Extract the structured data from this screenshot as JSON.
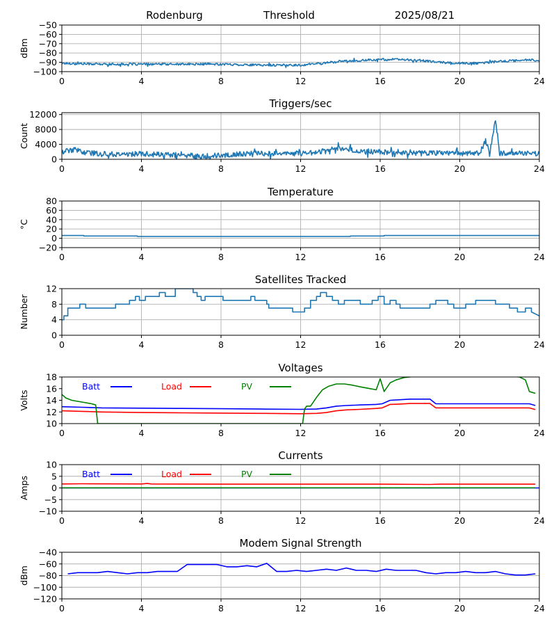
{
  "header": {
    "site": "Rodenburg",
    "metric": "Threshold",
    "date": "2025/08/21"
  },
  "colors": {
    "default_line": "#1f77b4",
    "grid": "#b0b0b0",
    "batt": "#0000ff",
    "load": "#ff0000",
    "pv": "#008000"
  },
  "chart_data": [
    {
      "type": "line",
      "id": "threshold",
      "title": "",
      "ylabel": "dBm",
      "xlim": [
        0,
        24
      ],
      "ylim": [
        -100,
        -50
      ],
      "xticks": [
        0,
        4,
        8,
        12,
        16,
        20,
        24
      ],
      "yticks": [
        -100,
        -90,
        -80,
        -70,
        -60,
        -50
      ],
      "grid": true,
      "noise": 1.2,
      "series": [
        {
          "color": "#1f77b4",
          "x": [
            0,
            2,
            4,
            6,
            8,
            10,
            12,
            13,
            14,
            15,
            16,
            17,
            18,
            19,
            20,
            21,
            22,
            23,
            23.5,
            24
          ],
          "y": [
            -91,
            -92,
            -92,
            -92,
            -92,
            -93,
            -93,
            -91,
            -89,
            -88,
            -87,
            -87,
            -88,
            -90,
            -91,
            -91,
            -89,
            -88,
            -87,
            -89
          ]
        }
      ]
    },
    {
      "type": "line",
      "id": "triggers",
      "title": "Triggers/sec",
      "ylabel": "Count",
      "xlim": [
        0,
        24
      ],
      "ylim": [
        0,
        12500
      ],
      "xticks": [
        0,
        4,
        8,
        12,
        16,
        20,
        24
      ],
      "yticks": [
        0,
        4000,
        8000,
        12000
      ],
      "grid": true,
      "noise": 700,
      "series": [
        {
          "color": "#1f77b4",
          "x": [
            0,
            0.6,
            1.2,
            2,
            3,
            4,
            5,
            6,
            7,
            8,
            9,
            10,
            11,
            12,
            13,
            13.5,
            14,
            14.5,
            15,
            16,
            17,
            18,
            19,
            20,
            21,
            21.3,
            21.5,
            21.8,
            22,
            23,
            24
          ],
          "y": [
            2000,
            2600,
            1800,
            1500,
            1300,
            1500,
            1200,
            1100,
            1000,
            1000,
            1400,
            1600,
            1500,
            1600,
            2000,
            2800,
            3000,
            2500,
            2000,
            2000,
            1800,
            1800,
            1700,
            1600,
            1600,
            5000,
            1500,
            11000,
            1600,
            1600,
            1500
          ]
        }
      ]
    },
    {
      "type": "line",
      "id": "temperature",
      "title": "Temperature",
      "ylabel": "°C",
      "xlim": [
        0,
        24
      ],
      "ylim": [
        -20,
        80
      ],
      "xticks": [
        0,
        4,
        8,
        12,
        16,
        20,
        24
      ],
      "yticks": [
        -20,
        0,
        20,
        40,
        60,
        80
      ],
      "grid": true,
      "noise": 0,
      "series": [
        {
          "color": "#1f77b4",
          "x": [
            0,
            1.1,
            1.1,
            3.8,
            3.8,
            14.5,
            14.5,
            16.2,
            16.2,
            24
          ],
          "y": [
            6,
            6,
            5,
            5,
            4,
            4,
            5,
            5,
            6,
            6
          ]
        }
      ]
    },
    {
      "type": "line",
      "id": "satellites",
      "title": "Satellites Tracked",
      "ylabel": "Number",
      "xlim": [
        0,
        24
      ],
      "ylim": [
        0,
        12
      ],
      "xticks": [
        0,
        4,
        8,
        12,
        16,
        20,
        24
      ],
      "yticks": [
        0,
        4,
        8,
        12
      ],
      "grid": true,
      "noise": 0,
      "series": [
        {
          "color": "#1f77b4",
          "x": [
            0,
            0.1,
            0.1,
            0.3,
            0.3,
            0.9,
            0.9,
            1.2,
            1.2,
            2.7,
            2.7,
            3.4,
            3.4,
            3.7,
            3.7,
            3.9,
            3.9,
            4.2,
            4.2,
            4.9,
            4.9,
            5.2,
            5.2,
            5.7,
            5.7,
            6.6,
            6.6,
            6.8,
            6.8,
            7.0,
            7.0,
            7.2,
            7.2,
            8.1,
            8.1,
            9.5,
            9.5,
            9.7,
            9.7,
            10.3,
            10.3,
            10.4,
            10.4,
            11.6,
            11.6,
            12.2,
            12.2,
            12.5,
            12.5,
            12.8,
            12.8,
            13.0,
            13.0,
            13.3,
            13.3,
            13.6,
            13.6,
            13.9,
            13.9,
            14.2,
            14.2,
            15.0,
            15.0,
            15.6,
            15.6,
            15.9,
            15.9,
            16.2,
            16.2,
            16.5,
            16.5,
            16.8,
            16.8,
            17.0,
            17.0,
            18.5,
            18.5,
            18.8,
            18.8,
            19.4,
            19.4,
            19.7,
            19.7,
            20.3,
            20.3,
            20.8,
            20.8,
            21.8,
            21.8,
            22.5,
            22.5,
            22.9,
            22.9,
            23.3,
            23.3,
            23.6,
            23.6,
            24
          ],
          "y": [
            4,
            4,
            5,
            5,
            7,
            7,
            8,
            8,
            7,
            7,
            8,
            8,
            9,
            9,
            10,
            10,
            9,
            9,
            10,
            10,
            11,
            11,
            10,
            10,
            12,
            12,
            11,
            11,
            10,
            10,
            9,
            9,
            10,
            10,
            9,
            9,
            10,
            10,
            9,
            9,
            8,
            8,
            7,
            7,
            6,
            6,
            7,
            7,
            9,
            9,
            10,
            10,
            11,
            11,
            10,
            10,
            9,
            9,
            8,
            8,
            9,
            9,
            8,
            8,
            9,
            9,
            10,
            10,
            8,
            8,
            9,
            9,
            8,
            8,
            7,
            7,
            8,
            8,
            9,
            9,
            8,
            8,
            7,
            7,
            8,
            8,
            9,
            9,
            8,
            8,
            7,
            7,
            6,
            6,
            7,
            7,
            6,
            5
          ]
        }
      ]
    },
    {
      "type": "line",
      "id": "voltages",
      "title": "Voltages",
      "ylabel": "Volts",
      "xlim": [
        0,
        24
      ],
      "ylim": [
        10,
        18
      ],
      "xticks": [
        0,
        4,
        8,
        12,
        16,
        20,
        24
      ],
      "yticks": [
        10,
        12,
        14,
        16,
        18
      ],
      "grid": false,
      "noise": 0,
      "legend": [
        {
          "label": "Batt",
          "color": "#0000ff"
        },
        {
          "label": "Load",
          "color": "#ff0000"
        },
        {
          "label": "PV",
          "color": "#008000"
        }
      ],
      "series": [
        {
          "label": "Batt",
          "color": "#0000ff",
          "x": [
            0,
            1,
            2,
            4,
            6,
            8,
            10,
            12,
            12.8,
            13.3,
            13.8,
            14.3,
            15,
            15.8,
            16.1,
            16.5,
            17,
            17.5,
            18.5,
            18.8,
            20,
            22,
            23.5,
            23.8
          ],
          "y": [
            12.9,
            12.8,
            12.7,
            12.65,
            12.6,
            12.55,
            12.5,
            12.45,
            12.5,
            12.7,
            13.0,
            13.1,
            13.2,
            13.3,
            13.4,
            14.0,
            14.1,
            14.2,
            14.2,
            13.4,
            13.4,
            13.4,
            13.4,
            13.1
          ]
        },
        {
          "label": "Load",
          "color": "#ff0000",
          "x": [
            0,
            1,
            2,
            4,
            6,
            8,
            10,
            12,
            12.8,
            13.3,
            13.8,
            14.3,
            15,
            15.8,
            16.1,
            16.5,
            17,
            17.5,
            18.5,
            18.8,
            20,
            22,
            23.5,
            23.8
          ],
          "y": [
            12.2,
            12.1,
            12.0,
            11.9,
            11.85,
            11.8,
            11.75,
            11.7,
            11.75,
            11.9,
            12.2,
            12.35,
            12.45,
            12.6,
            12.7,
            13.3,
            13.35,
            13.45,
            13.45,
            12.7,
            12.7,
            12.7,
            12.7,
            12.4
          ]
        },
        {
          "label": "PV",
          "color": "#008000",
          "x": [
            0,
            0.2,
            0.5,
            1,
            1.5,
            1.7,
            1.8,
            12.1,
            12.2,
            12.3,
            12.5,
            12.8,
            13.1,
            13.4,
            13.8,
            14.2,
            14.6,
            15,
            15.5,
            15.8,
            16.0,
            16.2,
            16.5,
            16.8,
            17.2,
            18,
            22,
            23,
            23.3,
            23.5,
            23.8
          ],
          "y": [
            15.0,
            14.4,
            14.0,
            13.7,
            13.4,
            13.2,
            10.0,
            10.0,
            12.5,
            13.0,
            13.0,
            14.5,
            15.8,
            16.4,
            16.8,
            16.8,
            16.6,
            16.3,
            16.0,
            15.8,
            17.7,
            15.5,
            17.0,
            17.5,
            17.9,
            18.2,
            18.2,
            18.0,
            17.5,
            15.5,
            15.2
          ]
        }
      ]
    },
    {
      "type": "line",
      "id": "currents",
      "title": "Currents",
      "ylabel": "Amps",
      "xlim": [
        0,
        24
      ],
      "ylim": [
        -10,
        10
      ],
      "xticks": [
        0,
        4,
        8,
        12,
        16,
        20,
        24
      ],
      "yticks": [
        -10,
        -5,
        0,
        5,
        10
      ],
      "grid": true,
      "noise": 0,
      "legend": [
        {
          "label": "Batt",
          "color": "#0000ff"
        },
        {
          "label": "Load",
          "color": "#ff0000"
        },
        {
          "label": "PV",
          "color": "#008000"
        }
      ],
      "series": [
        {
          "label": "Batt",
          "color": "#0000ff",
          "x": [
            0,
            24
          ],
          "y": [
            0,
            0
          ]
        },
        {
          "label": "PV",
          "color": "#008000",
          "x": [
            0,
            23.8
          ],
          "y": [
            0.05,
            0.05
          ]
        },
        {
          "label": "Load",
          "color": "#ff0000",
          "x": [
            0,
            1,
            4,
            4.3,
            4.5,
            8,
            12,
            16,
            18.5,
            19,
            23.8
          ],
          "y": [
            1.7,
            1.8,
            1.7,
            1.9,
            1.7,
            1.6,
            1.6,
            1.6,
            1.5,
            1.6,
            1.6
          ]
        }
      ]
    },
    {
      "type": "line",
      "id": "modem",
      "title": "Modem Signal Strength",
      "ylabel": "dBm",
      "xlim": [
        0,
        24
      ],
      "ylim": [
        -120,
        -40
      ],
      "xticks": [
        0,
        4,
        8,
        12,
        16,
        20,
        24
      ],
      "yticks": [
        -120,
        -100,
        -80,
        -60,
        -40
      ],
      "grid": true,
      "noise": 0,
      "series": [
        {
          "color": "#0000ff",
          "x": [
            0.3,
            0.8,
            1.8,
            2.3,
            2.8,
            3.3,
            3.8,
            4.3,
            4.8,
            5.3,
            5.8,
            6.3,
            6.8,
            7.3,
            7.8,
            8.3,
            8.8,
            9.3,
            9.8,
            10.3,
            10.8,
            11.3,
            11.8,
            12.3,
            12.8,
            13.3,
            13.8,
            14.3,
            14.8,
            15.3,
            15.8,
            16.3,
            16.8,
            17.3,
            17.8,
            18.3,
            18.8,
            19.3,
            19.8,
            20.3,
            20.8,
            21.3,
            21.8,
            22.3,
            22.8,
            23.3,
            23.8
          ],
          "y": [
            -77,
            -75,
            -75,
            -73,
            -75,
            -77,
            -75,
            -75,
            -73,
            -73,
            -73,
            -61,
            -61,
            -61,
            -61,
            -65,
            -65,
            -63,
            -65,
            -59,
            -73,
            -73,
            -71,
            -73,
            -71,
            -69,
            -71,
            -67,
            -71,
            -71,
            -73,
            -69,
            -71,
            -71,
            -71,
            -75,
            -77,
            -75,
            -75,
            -73,
            -75,
            -75,
            -73,
            -77,
            -79,
            -79,
            -77
          ]
        }
      ]
    }
  ]
}
